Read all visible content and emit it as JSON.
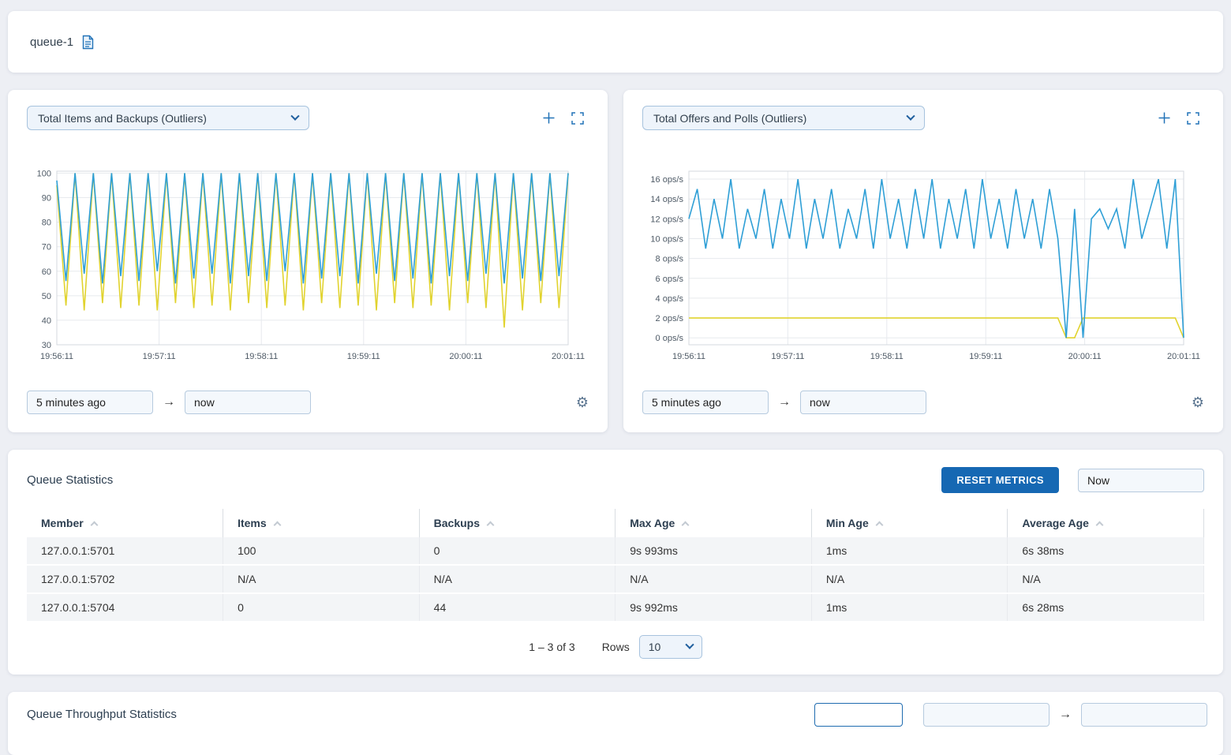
{
  "theme": {
    "accent": "#1f6cb0",
    "button_blue": "#1668b3",
    "series_blue": "#2f9fd6",
    "series_yellow": "#e1d32f"
  },
  "header": {
    "title": "queue-1"
  },
  "panels": [
    {
      "selector": "Total Items and Backups (Outliers)",
      "time_from": "5 minutes ago",
      "time_to": "now"
    },
    {
      "selector": "Total Offers and Polls (Outliers)",
      "time_from": "5 minutes ago",
      "time_to": "now"
    }
  ],
  "chart_data": [
    {
      "type": "line",
      "title": "Total Items and Backups (Outliers)",
      "xlabel": "",
      "ylabel": "",
      "ylim": [
        30,
        100.8
      ],
      "yticks": [
        100,
        90,
        80,
        70,
        60,
        50,
        40,
        30
      ],
      "ytick_labels": [
        "100",
        "90",
        "80",
        "70",
        "60",
        "50",
        "40",
        "30"
      ],
      "xticks": [
        "19:56:11",
        "19:57:11",
        "19:58:11",
        "19:59:11",
        "20:00:11",
        "20:01:11"
      ],
      "grid": true,
      "legend": "none",
      "series": [
        {
          "name": "Backups",
          "color": "#e1d32f",
          "values": [
            95,
            46,
            100,
            44,
            100,
            47,
            100,
            45,
            100,
            46,
            100,
            44,
            100,
            47,
            100,
            45,
            100,
            46,
            100,
            44,
            100,
            47,
            100,
            45,
            100,
            46,
            100,
            44,
            100,
            47,
            100,
            45,
            100,
            46,
            100,
            44,
            100,
            47,
            100,
            45,
            100,
            46,
            100,
            44,
            100,
            47,
            100,
            45,
            100,
            37,
            100,
            44,
            100,
            47,
            100,
            45,
            100
          ]
        },
        {
          "name": "Items",
          "color": "#2f9fd6",
          "values": [
            97,
            56,
            100,
            59,
            100,
            55,
            100,
            58,
            100,
            56,
            100,
            60,
            100,
            55,
            100,
            57,
            100,
            59,
            100,
            55,
            100,
            58,
            100,
            56,
            100,
            60,
            100,
            55,
            100,
            57,
            100,
            58,
            100,
            55,
            100,
            59,
            100,
            56,
            100,
            57,
            100,
            55,
            100,
            58,
            100,
            56,
            100,
            59,
            100,
            55,
            100,
            57,
            100,
            56,
            100,
            58,
            100
          ]
        }
      ]
    },
    {
      "type": "line",
      "title": "Total Offers and Polls (Outliers)",
      "xlabel": "",
      "ylabel": "ops/s",
      "ylim": [
        -0.7,
        16.8
      ],
      "yticks": [
        16,
        14,
        12,
        10,
        8,
        6,
        4,
        2,
        0
      ],
      "ytick_labels": [
        "16 ops/s",
        "14 ops/s",
        "12 ops/s",
        "10 ops/s",
        "8 ops/s",
        "6 ops/s",
        "4 ops/s",
        "2 ops/s",
        "0 ops/s"
      ],
      "xticks": [
        "19:56:11",
        "19:57:11",
        "19:58:11",
        "19:59:11",
        "20:00:11",
        "20:01:11"
      ],
      "grid": true,
      "legend": "none",
      "series": [
        {
          "name": "Polls",
          "color": "#e1d32f",
          "values": [
            2,
            2,
            2,
            2,
            2,
            2,
            2,
            2,
            2,
            2,
            2,
            2,
            2,
            2,
            2,
            2,
            2,
            2,
            2,
            2,
            2,
            2,
            2,
            2,
            2,
            2,
            2,
            2,
            2,
            2,
            2,
            2,
            2,
            2,
            2,
            2,
            2,
            2,
            2,
            2,
            2,
            2,
            2,
            2,
            2,
            0,
            0,
            2,
            2,
            2,
            2,
            2,
            2,
            2,
            2,
            2,
            2,
            2,
            2,
            0
          ]
        },
        {
          "name": "Offers",
          "color": "#2f9fd6",
          "values": [
            12,
            15,
            9,
            14,
            10,
            16,
            9,
            13,
            10,
            15,
            9,
            14,
            10,
            16,
            9,
            14,
            10,
            15,
            9,
            13,
            10,
            15,
            9,
            16,
            10,
            14,
            9,
            15,
            10,
            16,
            9,
            14,
            10,
            15,
            9,
            16,
            10,
            14,
            9,
            15,
            10,
            14,
            9,
            15,
            10,
            0,
            13,
            0,
            12,
            13,
            11,
            13,
            9,
            16,
            10,
            13,
            16,
            9,
            16,
            0
          ]
        }
      ]
    }
  ],
  "queue_statistics": {
    "title": "Queue Statistics",
    "reset_button": "RESET METRICS",
    "time_input": "Now",
    "columns": [
      "Member",
      "Items",
      "Backups",
      "Max Age",
      "Min Age",
      "Average Age"
    ],
    "rows": [
      [
        "127.0.0.1:5701",
        "100",
        "0",
        "9s 993ms",
        "1ms",
        "6s 38ms"
      ],
      [
        "127.0.0.1:5702",
        "N/A",
        "N/A",
        "N/A",
        "N/A",
        "N/A"
      ],
      [
        "127.0.0.1:5704",
        "0",
        "44",
        "9s 992ms",
        "1ms",
        "6s 28ms"
      ]
    ],
    "pagination": {
      "range": "1 – 3 of 3",
      "rows_label": "Rows",
      "rows_value": "10"
    }
  },
  "throughput_section": {
    "title": "Queue Throughput Statistics"
  }
}
